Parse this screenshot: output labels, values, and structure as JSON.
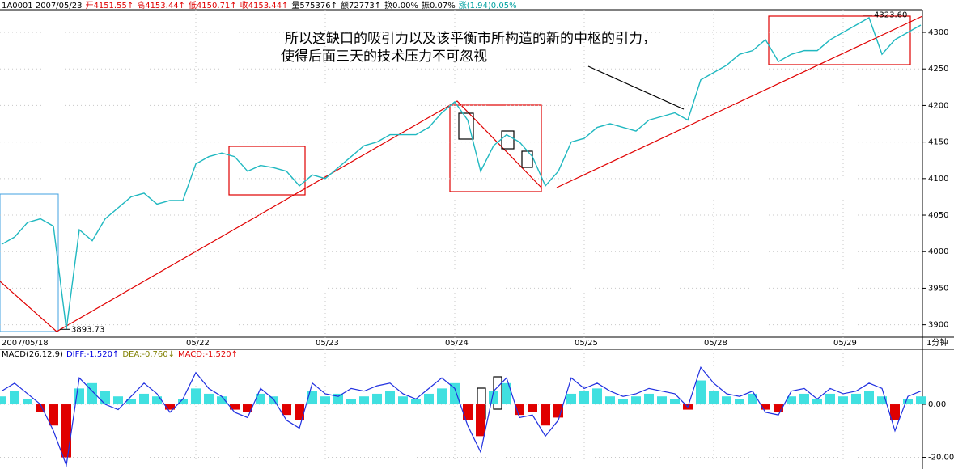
{
  "header": [
    "1A0001 2007/05/23",
    "开4151.55↑",
    "高4153.44↑",
    "低4150.71↑",
    "收4153.44↑",
    "量575376↑",
    "额72773↑",
    "换0.00%",
    "振0.07%",
    "涨(1.94)0.05%"
  ],
  "header_colors": [
    "#000000",
    "#e00000",
    "#e00000",
    "#e00000",
    "#e00000",
    "#000000",
    "#000000",
    "#000000",
    "#000000",
    "#00a0a0"
  ],
  "annotation": [
    "所以这缺口的吸引力以及该平衡市所构造的新的中枢的引力，",
    "使得后面三天的技术压力不可忽视"
  ],
  "price_labels": [
    {
      "value": 4323.6,
      "label": "4323.60"
    },
    {
      "value": 3893.73,
      "label": "3893.73"
    }
  ],
  "period": "1分钟",
  "chart_data": [
    {
      "type": "line",
      "categories": [
        "2007/05/18",
        null,
        null,
        null,
        null,
        null,
        null,
        null,
        null,
        null,
        null,
        null,
        null,
        null,
        null,
        "05/22",
        null,
        null,
        null,
        null,
        null,
        null,
        null,
        null,
        null,
        "05/23",
        null,
        null,
        null,
        null,
        null,
        null,
        null,
        null,
        null,
        "05/24",
        null,
        null,
        null,
        null,
        null,
        null,
        null,
        null,
        null,
        "05/25",
        null,
        null,
        null,
        null,
        null,
        null,
        null,
        null,
        null,
        "05/28",
        null,
        null,
        null,
        null,
        null,
        null,
        null,
        null,
        null,
        "05/29",
        null,
        null,
        null,
        null,
        null,
        null
      ],
      "values": [
        4010,
        4020,
        4040,
        4045,
        4035,
        3894,
        4030,
        4015,
        4045,
        4060,
        4075,
        4080,
        4065,
        4070,
        4070,
        4120,
        4130,
        4135,
        4130,
        4110,
        4118,
        4115,
        4110,
        4090,
        4105,
        4100,
        4115,
        4130,
        4145,
        4150,
        4160,
        4160,
        4160,
        4170,
        4190,
        4205,
        4180,
        4110,
        4145,
        4160,
        4150,
        4130,
        4090,
        4110,
        4150,
        4155,
        4170,
        4175,
        4170,
        4165,
        4180,
        4185,
        4190,
        4180,
        4235,
        4245,
        4255,
        4270,
        4275,
        4290,
        4260,
        4270,
        4275,
        4275,
        4290,
        4300,
        4310,
        4320,
        4270,
        4290,
        4300,
        4310
      ],
      "color": "#20b8c0",
      "ylim": [
        3883,
        4331
      ],
      "yticks": [
        4300,
        4250,
        4200,
        4150,
        4100,
        4050,
        4000,
        3950,
        3900
      ],
      "grid": true
    },
    {
      "type": "macd",
      "title": "MACD(26,12,9)",
      "readouts": [
        {
          "text": "DIFF:-1.520↑",
          "color": "#0000e0"
        },
        {
          "text": "DEA:-0.760↓",
          "color": "#808000"
        },
        {
          "text": "MACD:-1.520↑",
          "color": "#e00000"
        }
      ],
      "series": [
        {
          "style": "bar",
          "up_color": "#40e0e0",
          "down_color": "#e00000",
          "values": [
            3,
            5,
            2,
            -3,
            -8,
            -20,
            6,
            8,
            5,
            3,
            2,
            4,
            3,
            -2,
            2,
            6,
            4,
            3,
            -2,
            -3,
            4,
            3,
            -4,
            -6,
            5,
            3,
            4,
            2,
            3,
            4,
            5,
            3,
            2,
            4,
            6,
            8,
            -6,
            -12,
            5,
            8,
            -4,
            -3,
            -8,
            -5,
            4,
            5,
            6,
            3,
            2,
            3,
            4,
            3,
            2,
            -2,
            9,
            5,
            3,
            2,
            4,
            -2,
            -3,
            3,
            4,
            2,
            4,
            3,
            4,
            5,
            3,
            -6,
            2,
            3
          ]
        },
        {
          "style": "line",
          "color": "#2030e0",
          "values": [
            5,
            8,
            4,
            0,
            -10,
            -23,
            10,
            5,
            0,
            -2,
            3,
            8,
            4,
            -3,
            2,
            12,
            6,
            3,
            -3,
            -5,
            6,
            2,
            -6,
            -9,
            8,
            4,
            3,
            6,
            5,
            7,
            8,
            4,
            2,
            6,
            10,
            6,
            -8,
            -18,
            5,
            10,
            -5,
            -4,
            -12,
            -6,
            10,
            6,
            8,
            5,
            3,
            4,
            6,
            5,
            4,
            -1,
            14,
            8,
            4,
            3,
            5,
            -3,
            -4,
            5,
            6,
            2,
            6,
            4,
            5,
            8,
            6,
            -10,
            3,
            5
          ]
        }
      ],
      "ylim": [
        -23.8,
        16.8
      ],
      "yticks": [
        {
          "value": 0,
          "label": "0.00"
        },
        {
          "value": -20,
          "label": "-20.00"
        }
      ]
    }
  ]
}
